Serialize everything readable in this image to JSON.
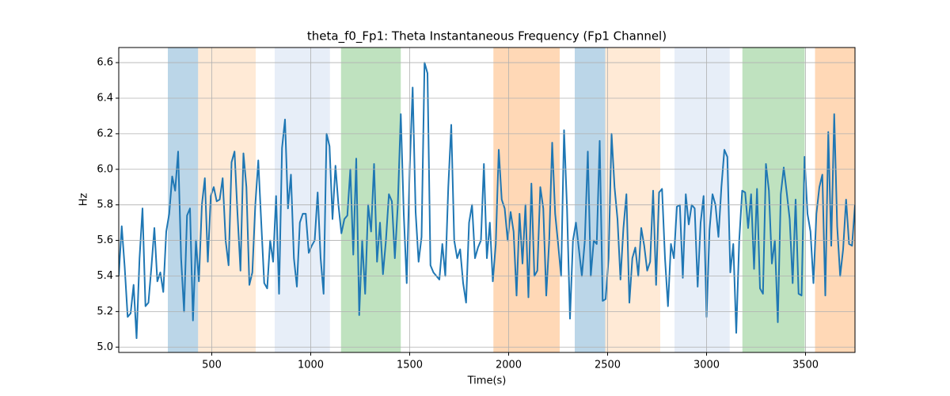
{
  "chart_data": {
    "type": "line",
    "title": "theta_f0_Fp1: Theta Instantaneous Frequency (Fp1 Channel)",
    "xlabel": "Time(s)",
    "ylabel": "Hz",
    "color": "#1f77b4",
    "grid": true,
    "xlim": [
      30,
      3750
    ],
    "ylim": [
      4.97,
      6.685
    ],
    "xticks": [
      500,
      1000,
      1500,
      2000,
      2500,
      3000,
      3500
    ],
    "yticks": [
      {
        "value": 5,
        "label": "5.0"
      },
      5.2,
      5.4,
      5.6,
      5.8,
      {
        "value": 6,
        "label": "6.0"
      },
      6.2,
      6.4,
      6.6
    ],
    "spans": [
      {
        "x0": 278,
        "x1": 431,
        "color": "#1f77b4",
        "alpha": 0.3
      },
      {
        "x0": 431,
        "x1": 722,
        "color": "#ffbb78",
        "alpha": 0.3
      },
      {
        "x0": 818,
        "x1": 1097,
        "color": "#aec7e8",
        "alpha": 0.3
      },
      {
        "x0": 1153,
        "x1": 1455,
        "color": "#2ca02c",
        "alpha": 0.3
      },
      {
        "x0": 1923,
        "x1": 2258,
        "color": "#ff7f0e",
        "alpha": 0.3
      },
      {
        "x0": 2334,
        "x1": 2488,
        "color": "#1f77b4",
        "alpha": 0.3
      },
      {
        "x0": 2488,
        "x1": 2766,
        "color": "#ffbb78",
        "alpha": 0.3
      },
      {
        "x0": 2838,
        "x1": 3117,
        "color": "#aec7e8",
        "alpha": 0.3
      },
      {
        "x0": 3181,
        "x1": 3496,
        "color": "#2ca02c",
        "alpha": 0.3
      },
      {
        "x0": 3548,
        "x1": 3778,
        "color": "#ff7f0e",
        "alpha": 0.3
      }
    ],
    "x": [
      30,
      45,
      60,
      75,
      90,
      105,
      120,
      135,
      150,
      165,
      180,
      195,
      210,
      225,
      240,
      255,
      270,
      285,
      300,
      315,
      330,
      345,
      360,
      375,
      390,
      405,
      420,
      435,
      450,
      465,
      480,
      495,
      510,
      525,
      540,
      555,
      570,
      585,
      600,
      615,
      630,
      645,
      660,
      675,
      690,
      705,
      720,
      735,
      750,
      765,
      780,
      795,
      810,
      825,
      840,
      855,
      870,
      885,
      900,
      915,
      930,
      945,
      960,
      975,
      990,
      1005,
      1020,
      1035,
      1050,
      1065,
      1080,
      1095,
      1110,
      1125,
      1140,
      1155,
      1170,
      1185,
      1200,
      1215,
      1230,
      1245,
      1260,
      1275,
      1290,
      1305,
      1320,
      1335,
      1350,
      1365,
      1380,
      1395,
      1410,
      1425,
      1440,
      1455,
      1470,
      1485,
      1500,
      1515,
      1530,
      1545,
      1560,
      1575,
      1590,
      1605,
      1620,
      1635,
      1650,
      1665,
      1680,
      1695,
      1710,
      1725,
      1740,
      1755,
      1770,
      1785,
      1800,
      1815,
      1830,
      1845,
      1860,
      1875,
      1890,
      1905,
      1920,
      1935,
      1950,
      1965,
      1980,
      1995,
      2010,
      2025,
      2040,
      2055,
      2070,
      2085,
      2100,
      2115,
      2130,
      2145,
      2160,
      2175,
      2190,
      2205,
      2220,
      2235,
      2250,
      2265,
      2280,
      2295,
      2310,
      2325,
      2340,
      2355,
      2370,
      2385,
      2400,
      2415,
      2430,
      2445,
      2460,
      2475,
      2490,
      2505,
      2520,
      2535,
      2550,
      2565,
      2580,
      2595,
      2610,
      2625,
      2640,
      2655,
      2670,
      2685,
      2700,
      2715,
      2730,
      2745,
      2760,
      2775,
      2790,
      2805,
      2820,
      2835,
      2850,
      2865,
      2880,
      2895,
      2910,
      2925,
      2940,
      2955,
      2970,
      2985,
      3000,
      3015,
      3030,
      3045,
      3060,
      3075,
      3090,
      3105,
      3120,
      3135,
      3150,
      3165,
      3180,
      3195,
      3210,
      3225,
      3240,
      3255,
      3270,
      3285,
      3300,
      3315,
      3330,
      3345,
      3360,
      3375,
      3390,
      3405,
      3420,
      3435,
      3450,
      3465,
      3480,
      3495,
      3510,
      3525,
      3540,
      3555,
      3570,
      3585,
      3600,
      3615,
      3630,
      3645,
      3660,
      3675,
      3690,
      3705,
      3720,
      3735,
      3750
    ],
    "values": [
      5.4,
      5.68,
      5.45,
      5.17,
      5.19,
      5.35,
      5.05,
      5.5,
      5.78,
      5.23,
      5.25,
      5.45,
      5.67,
      5.37,
      5.42,
      5.31,
      5.65,
      5.75,
      5.96,
      5.88,
      6.1,
      5.5,
      5.2,
      5.74,
      5.78,
      5.15,
      5.6,
      5.37,
      5.8,
      5.95,
      5.48,
      5.85,
      5.9,
      5.82,
      5.83,
      5.95,
      5.6,
      5.46,
      6.04,
      6.1,
      5.75,
      5.43,
      6.09,
      5.9,
      5.35,
      5.42,
      5.8,
      6.05,
      5.7,
      5.36,
      5.33,
      5.6,
      5.48,
      5.85,
      5.3,
      6.12,
      6.28,
      5.78,
      5.97,
      5.5,
      5.34,
      5.7,
      5.75,
      5.75,
      5.53,
      5.57,
      5.6,
      5.87,
      5.5,
      5.3,
      6.2,
      6.13,
      5.72,
      6.02,
      5.8,
      5.64,
      5.72,
      5.74,
      6.0,
      5.52,
      6.06,
      5.18,
      5.6,
      5.3,
      5.8,
      5.65,
      6.03,
      5.48,
      5.7,
      5.41,
      5.6,
      5.86,
      5.82,
      5.5,
      5.8,
      6.31,
      5.75,
      5.36,
      6.0,
      6.46,
      5.76,
      5.48,
      5.62,
      6.6,
      6.54,
      5.46,
      5.42,
      5.4,
      5.38,
      5.58,
      5.4,
      5.9,
      6.25,
      5.6,
      5.5,
      5.55,
      5.36,
      5.25,
      5.7,
      5.8,
      5.5,
      5.56,
      5.6,
      6.03,
      5.5,
      5.7,
      5.37,
      5.58,
      6.11,
      5.83,
      5.78,
      5.6,
      5.76,
      5.65,
      5.29,
      5.75,
      5.47,
      5.8,
      5.28,
      5.92,
      5.4,
      5.43,
      5.9,
      5.78,
      5.29,
      5.6,
      6.15,
      5.75,
      5.58,
      5.4,
      6.22,
      5.78,
      5.16,
      5.6,
      5.7,
      5.55,
      5.4,
      5.6,
      6.1,
      5.4,
      5.6,
      5.58,
      6.16,
      5.26,
      5.27,
      5.5,
      6.2,
      5.9,
      5.72,
      5.38,
      5.67,
      5.86,
      5.25,
      5.5,
      5.56,
      5.4,
      5.67,
      5.57,
      5.43,
      5.48,
      5.88,
      5.35,
      5.87,
      5.89,
      5.5,
      5.23,
      5.58,
      5.5,
      5.79,
      5.8,
      5.39,
      5.86,
      5.69,
      5.8,
      5.78,
      5.34,
      5.7,
      5.85,
      5.17,
      5.66,
      5.86,
      5.8,
      5.62,
      5.9,
      6.11,
      6.07,
      5.42,
      5.58,
      5.08,
      5.6,
      5.88,
      5.87,
      5.67,
      5.86,
      5.44,
      5.89,
      5.33,
      5.3,
      6.03,
      5.88,
      5.47,
      5.6,
      5.14,
      5.86,
      6.01,
      5.87,
      5.72,
      5.36,
      5.83,
      5.3,
      5.29,
      6.07,
      5.75,
      5.65,
      5.36,
      5.75,
      5.9,
      5.97,
      5.29,
      6.21,
      5.57,
      6.31,
      5.68,
      5.4,
      5.55,
      5.83,
      5.58,
      5.57,
      5.8
    ]
  }
}
